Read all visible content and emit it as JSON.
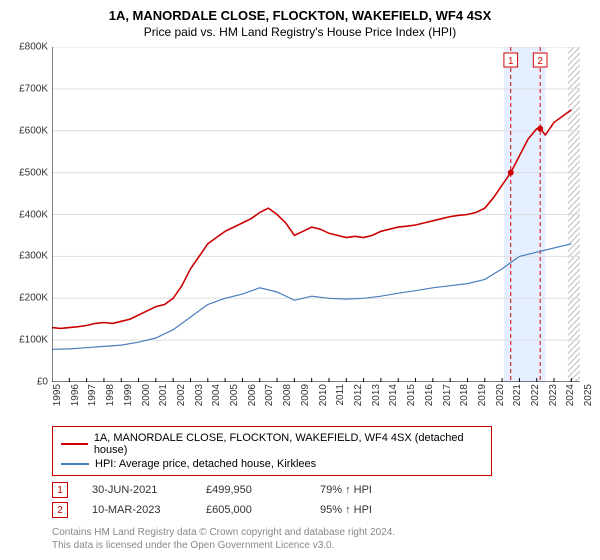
{
  "title": "1A, MANORDALE CLOSE, FLOCKTON, WAKEFIELD, WF4 4SX",
  "subtitle": "Price paid vs. HM Land Registry's House Price Index (HPI)",
  "chart": {
    "type": "line",
    "background_color": "#ffffff",
    "axis_color": "#000000",
    "grid_color": "#dddddd",
    "highlight_band_color": "#e6efff",
    "highlight_band_xstart": 2021.1,
    "highlight_band_xend": 2023.5,
    "ylim": [
      0,
      800000
    ],
    "ytick_step": 100000,
    "ytick_prefix": "£",
    "ytick_suffix": "K",
    "yticks": [
      "£0",
      "£100K",
      "£200K",
      "£300K",
      "£400K",
      "£500K",
      "£600K",
      "£700K",
      "£800K"
    ],
    "xlim": [
      1995,
      2025.5
    ],
    "xticks": [
      1995,
      1996,
      1997,
      1998,
      1999,
      2000,
      2001,
      2002,
      2003,
      2004,
      2005,
      2006,
      2007,
      2008,
      2009,
      2010,
      2011,
      2012,
      2013,
      2014,
      2015,
      2016,
      2017,
      2018,
      2019,
      2020,
      2021,
      2022,
      2023,
      2024,
      2025
    ],
    "diag_hatch_xstart": 2024.8,
    "label_fontsize": 10,
    "title_fontsize": 13,
    "series": [
      {
        "name": "1A, MANORDALE CLOSE, FLOCKTON, WAKEFIELD, WF4 4SX (detached house)",
        "color": "#cc0000",
        "line_width": 1.6,
        "points": [
          [
            1995,
            130000
          ],
          [
            1995.5,
            128000
          ],
          [
            1996,
            130000
          ],
          [
            1996.5,
            132000
          ],
          [
            1997,
            135000
          ],
          [
            1997.5,
            140000
          ],
          [
            1998,
            142000
          ],
          [
            1998.5,
            140000
          ],
          [
            1999,
            145000
          ],
          [
            1999.5,
            150000
          ],
          [
            2000,
            160000
          ],
          [
            2000.5,
            170000
          ],
          [
            2001,
            180000
          ],
          [
            2001.5,
            185000
          ],
          [
            2002,
            200000
          ],
          [
            2002.5,
            230000
          ],
          [
            2003,
            270000
          ],
          [
            2003.5,
            300000
          ],
          [
            2004,
            330000
          ],
          [
            2004.5,
            345000
          ],
          [
            2005,
            360000
          ],
          [
            2005.5,
            370000
          ],
          [
            2006,
            380000
          ],
          [
            2006.5,
            390000
          ],
          [
            2007,
            405000
          ],
          [
            2007.5,
            415000
          ],
          [
            2008,
            400000
          ],
          [
            2008.5,
            380000
          ],
          [
            2009,
            350000
          ],
          [
            2009.5,
            360000
          ],
          [
            2010,
            370000
          ],
          [
            2010.5,
            365000
          ],
          [
            2011,
            355000
          ],
          [
            2011.5,
            350000
          ],
          [
            2012,
            345000
          ],
          [
            2012.5,
            348000
          ],
          [
            2013,
            345000
          ],
          [
            2013.5,
            350000
          ],
          [
            2014,
            360000
          ],
          [
            2014.5,
            365000
          ],
          [
            2015,
            370000
          ],
          [
            2015.5,
            372000
          ],
          [
            2016,
            375000
          ],
          [
            2016.5,
            380000
          ],
          [
            2017,
            385000
          ],
          [
            2017.5,
            390000
          ],
          [
            2018,
            395000
          ],
          [
            2018.5,
            398000
          ],
          [
            2019,
            400000
          ],
          [
            2019.5,
            405000
          ],
          [
            2020,
            415000
          ],
          [
            2020.5,
            440000
          ],
          [
            2021,
            470000
          ],
          [
            2021.5,
            499950
          ],
          [
            2022,
            540000
          ],
          [
            2022.5,
            580000
          ],
          [
            2023,
            605000
          ],
          [
            2023.2,
            605000
          ],
          [
            2023.5,
            590000
          ],
          [
            2024,
            620000
          ],
          [
            2024.5,
            635000
          ],
          [
            2025,
            650000
          ]
        ]
      },
      {
        "name": "HPI: Average price, detached house, Kirklees",
        "color": "#4a7ebb",
        "line_width": 1.2,
        "points": [
          [
            1995,
            78000
          ],
          [
            1996,
            79000
          ],
          [
            1997,
            82000
          ],
          [
            1998,
            85000
          ],
          [
            1999,
            88000
          ],
          [
            2000,
            95000
          ],
          [
            2001,
            105000
          ],
          [
            2002,
            125000
          ],
          [
            2003,
            155000
          ],
          [
            2004,
            185000
          ],
          [
            2005,
            200000
          ],
          [
            2006,
            210000
          ],
          [
            2007,
            225000
          ],
          [
            2008,
            215000
          ],
          [
            2009,
            195000
          ],
          [
            2010,
            205000
          ],
          [
            2011,
            200000
          ],
          [
            2012,
            198000
          ],
          [
            2013,
            200000
          ],
          [
            2014,
            205000
          ],
          [
            2015,
            212000
          ],
          [
            2016,
            218000
          ],
          [
            2017,
            225000
          ],
          [
            2018,
            230000
          ],
          [
            2019,
            235000
          ],
          [
            2020,
            245000
          ],
          [
            2021,
            270000
          ],
          [
            2022,
            300000
          ],
          [
            2023,
            310000
          ],
          [
            2024,
            320000
          ],
          [
            2025,
            330000
          ]
        ]
      }
    ],
    "markers": [
      {
        "label": "1",
        "x": 2021.5,
        "y": 499950,
        "line_color": "#cc0000",
        "dash": "4,3"
      },
      {
        "label": "2",
        "x": 2023.2,
        "y": 605000,
        "line_color": "#cc0000",
        "dash": "4,3"
      }
    ]
  },
  "legend": {
    "border_color": "#cc0000",
    "items": [
      {
        "color": "#cc0000",
        "label": "1A, MANORDALE CLOSE, FLOCKTON, WAKEFIELD, WF4 4SX (detached house)"
      },
      {
        "color": "#4a7ebb",
        "label": "HPI: Average price, detached house, Kirklees"
      }
    ]
  },
  "marker_table": [
    {
      "badge": "1",
      "date": "30-JUN-2021",
      "price": "£499,950",
      "hpi": "79% ↑ HPI"
    },
    {
      "badge": "2",
      "date": "10-MAR-2023",
      "price": "£605,000",
      "hpi": "95% ↑ HPI"
    }
  ],
  "footer_line1": "Contains HM Land Registry data © Crown copyright and database right 2024.",
  "footer_line2": "This data is licensed under the Open Government Licence v3.0."
}
